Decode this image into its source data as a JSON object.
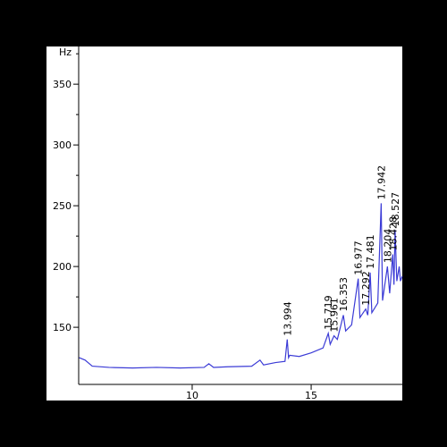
{
  "chart_data": {
    "type": "line",
    "y_unit": "Hz",
    "color": "#3b3bd6",
    "x": [
      5.25,
      5.5,
      5.8,
      6.5,
      7.5,
      8.5,
      9.5,
      10.5,
      10.7,
      10.9,
      11.5,
      12.5,
      12.85,
      13.0,
      13.5,
      13.9,
      13.994,
      14.05,
      14.1,
      14.5,
      15,
      15.5,
      15.719,
      15.8,
      15.961,
      16.1,
      16.353,
      16.45,
      16.7,
      16.977,
      17.05,
      17.292,
      17.38,
      17.481,
      17.55,
      17.8,
      17.942,
      18.0,
      18.204,
      18.3,
      18.428,
      18.48,
      18.527,
      18.6,
      18.7,
      18.75,
      18.83
    ],
    "values": [
      125,
      123,
      118,
      117,
      116.5,
      117,
      116.5,
      117,
      120,
      117,
      117.5,
      118,
      123,
      119,
      121,
      122,
      140,
      125,
      127,
      126,
      129,
      133,
      145,
      136,
      143,
      140,
      160,
      147,
      152,
      190,
      158,
      165,
      160,
      195,
      162,
      170,
      252,
      172,
      200,
      178,
      210,
      185,
      230,
      188,
      200,
      188,
      192
    ],
    "peaks": [
      {
        "x": 13.994,
        "y": 140
      },
      {
        "x": 15.719,
        "y": 145
      },
      {
        "x": 15.961,
        "y": 143
      },
      {
        "x": 16.353,
        "y": 160
      },
      {
        "x": 16.977,
        "y": 190
      },
      {
        "x": 17.292,
        "y": 165
      },
      {
        "x": 17.481,
        "y": 195
      },
      {
        "x": 17.942,
        "y": 252
      },
      {
        "x": 18.204,
        "y": 200
      },
      {
        "x": 18.428,
        "y": 210
      },
      {
        "x": 18.527,
        "y": 230
      }
    ],
    "xlim": [
      5.23,
      18.83
    ],
    "ylim": [
      103,
      381
    ],
    "xticks": [
      10,
      15
    ],
    "yticks": [
      150,
      200,
      250,
      300,
      350
    ]
  }
}
